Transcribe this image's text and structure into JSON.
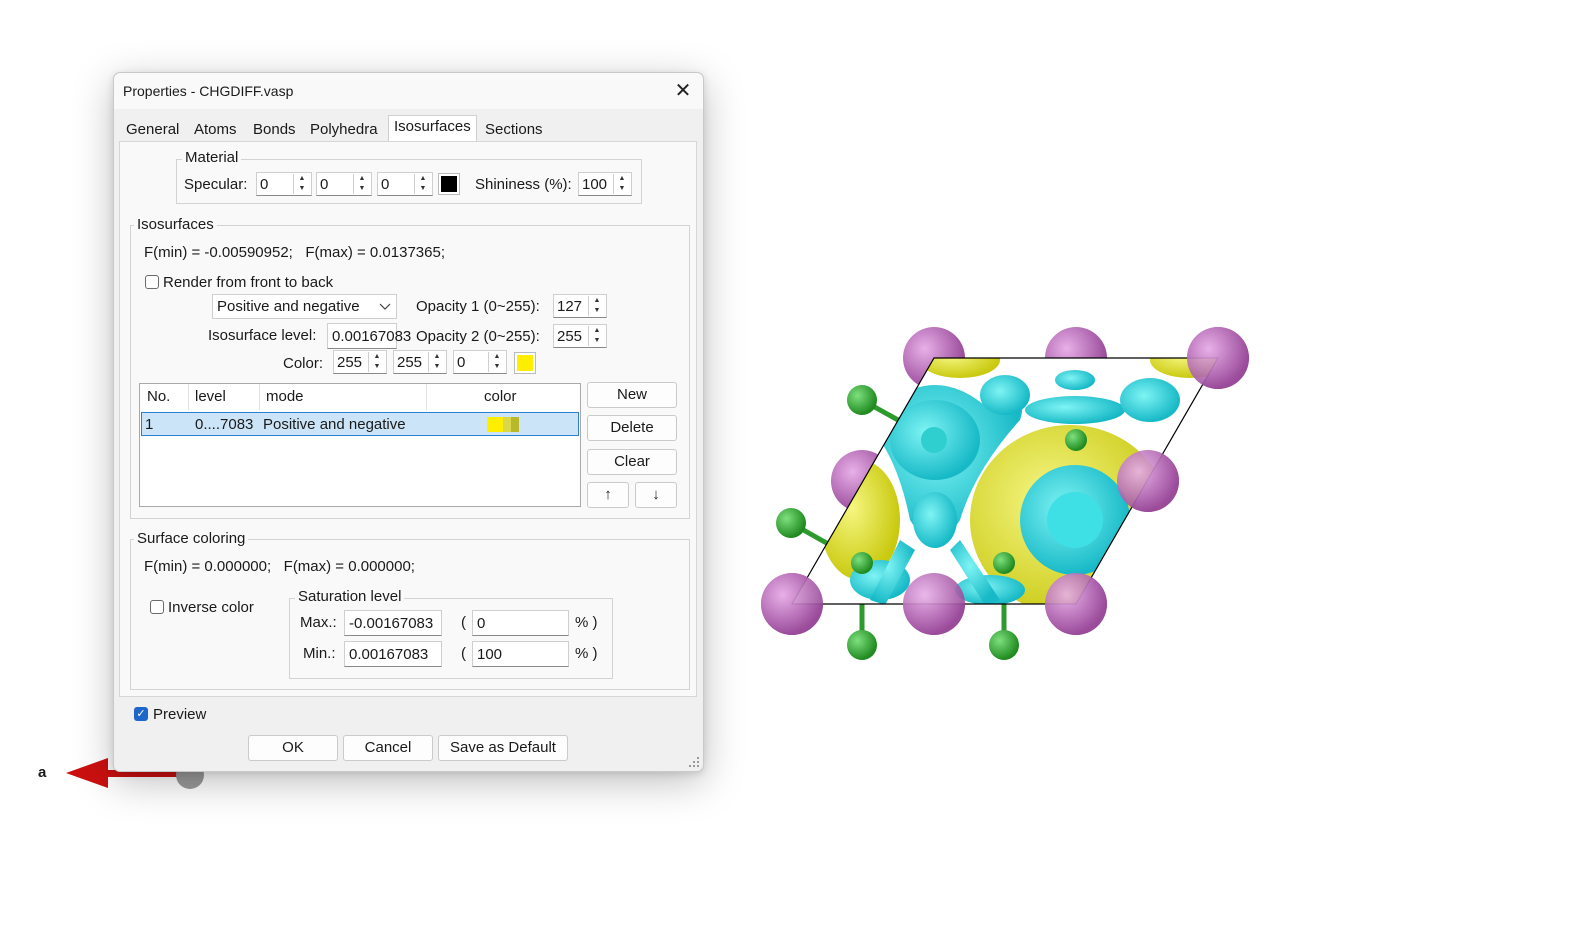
{
  "axis": {
    "label": "a"
  },
  "dialog": {
    "title": "Properties - CHGDIFF.vasp",
    "close_glyph": "✕",
    "tabs": [
      "General",
      "Atoms",
      "Bonds",
      "Polyhedra",
      "Isosurfaces",
      "Sections"
    ],
    "active_tab": "Isosurfaces",
    "material": {
      "label": "Material",
      "specular_label": "Specular:",
      "specular": [
        "0",
        "0",
        "0"
      ],
      "specular_color": "#000000",
      "shininess_label": "Shininess (%):",
      "shininess": "100"
    },
    "isosurfaces": {
      "label": "Isosurfaces",
      "frange": "F(min) = -0.00590952;   F(max) = 0.0137365;",
      "render_front_to_back": "Render from front to back",
      "render_front_to_back_checked": false,
      "mode_value": "Positive and negative",
      "level_label": "Isosurface level:",
      "level_value": "0.00167083",
      "opacity1_label": "Opacity 1 (0~255):",
      "opacity1": "127",
      "opacity2_label": "Opacity 2 (0~255):",
      "opacity2": "255",
      "color_label": "Color:",
      "color": [
        "255",
        "255",
        "0"
      ],
      "color_hex": "#ffee00",
      "columns": [
        "No.",
        "level",
        "mode",
        "color"
      ],
      "rows": [
        {
          "no": "1",
          "level": "0....7083",
          "mode": "Positive and negative"
        }
      ],
      "buttons": {
        "new": "New",
        "delete": "Delete",
        "clear": "Clear",
        "up": "↑",
        "down": "↓"
      }
    },
    "surface_coloring": {
      "label": "Surface coloring",
      "frange": "F(min) = 0.000000;   F(max) = 0.000000;",
      "inverse_color": "Inverse color",
      "inverse_checked": false,
      "saturation_label": "Saturation level",
      "max_label": "Max.:",
      "max_value": "-0.00167083",
      "max_pct": "0",
      "min_label": "Min.:",
      "min_value": "0.00167083",
      "min_pct": "100",
      "paren_open": "(",
      "pct_close": "% )"
    },
    "preview": "Preview",
    "preview_checked": true,
    "footer": {
      "ok": "OK",
      "cancel": "Cancel",
      "save_default": "Save as Default"
    }
  }
}
